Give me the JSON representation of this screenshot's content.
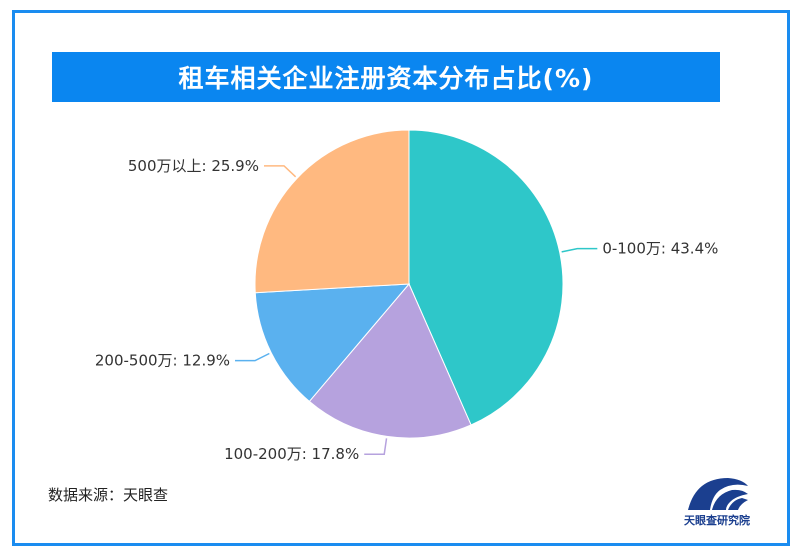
{
  "title": "租车相关企业注册资本分布占比(%)",
  "source": "数据来源：天眼查",
  "logo_text": "天眼查研究院",
  "chart_data": {
    "type": "pie",
    "title": "租车相关企业注册资本分布占比(%)",
    "slices": [
      {
        "label": "0-100万",
        "value": 43.4,
        "color": "#2ec7c9"
      },
      {
        "label": "100-200万",
        "value": 17.8,
        "color": "#b6a2de"
      },
      {
        "label": "200-500万",
        "value": 12.9,
        "color": "#5ab1ef"
      },
      {
        "label": "500万以上",
        "value": 25.9,
        "color": "#ffb980"
      }
    ],
    "labels": [
      "0-100万: 43.4%",
      "100-200万: 17.8%",
      "200-500万: 12.9%",
      "500万以上: 25.9%"
    ],
    "legend": "none"
  }
}
